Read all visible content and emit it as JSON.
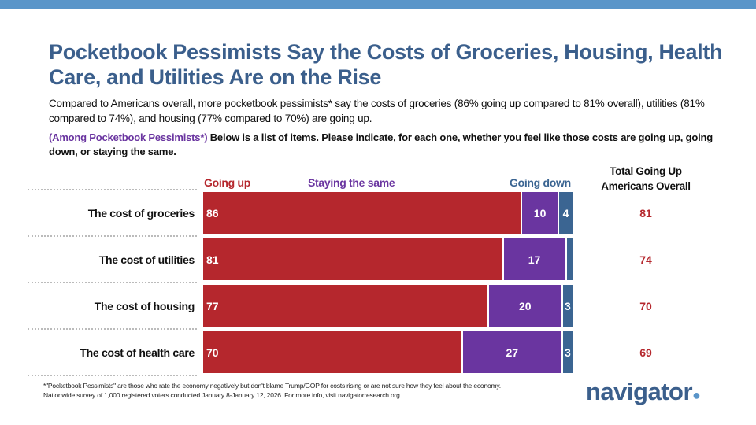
{
  "title": "Pocketbook Pessimists Say the Costs of Groceries, Housing, Health Care, and Utilities Are on the Rise",
  "subtitle": "Compared to Americans overall, more pocketbook pessimists* say the costs of groceries (86% going up compared to 81% overall), utilities (81% compared to 74%), and housing (77% compared to 70%) are going up.",
  "question_lead": "(Among Pocketbook Pessimists*)",
  "question": " Below is a list of items. Please indicate, for each one, whether you feel like those costs are going up, going down, or staying the same.",
  "total_header_line1": "Total Going Up",
  "total_header_line2": "Americans Overall",
  "footnote_1": "*\"Pocketbook Pessimists\" are those who rate the economy negatively but don't blame Trump/GOP for costs rising or are not sure how they feel about the economy.",
  "footnote_2": "Nationwide survey of 1,000 registered voters conducted January 8-January 12, 2026. For more info, visit navigatorresearch.org.",
  "logo": "navigator",
  "chart_data": {
    "type": "bar",
    "orientation": "horizontal-stacked",
    "xlim": [
      0,
      100
    ],
    "categories": [
      "The cost of groceries",
      "The cost of utilities",
      "The cost of housing",
      "The cost of health care"
    ],
    "series": [
      {
        "name": "Going up",
        "color": "#b5272d",
        "values": [
          86,
          81,
          77,
          70
        ],
        "labels": [
          "86",
          "81",
          "77",
          "70"
        ]
      },
      {
        "name": "Staying the same",
        "color": "#6a35a0",
        "values": [
          10,
          17,
          20,
          27
        ],
        "labels": [
          "10",
          "17",
          "20",
          "27"
        ]
      },
      {
        "name": "Going down",
        "color": "#3b6592",
        "values": [
          4,
          2,
          3,
          3
        ],
        "labels": [
          "4",
          "",
          "3",
          "3"
        ]
      }
    ],
    "total_going_up_americans_overall": [
      "81",
      "74",
      "70",
      "69"
    ]
  }
}
